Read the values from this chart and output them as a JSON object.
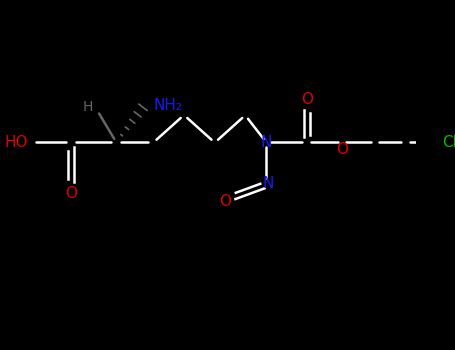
{
  "background_color": "#000000",
  "figsize": [
    4.55,
    3.5
  ],
  "dpi": 100,
  "bond_color": "#ffffff",
  "atom_colors": {
    "O": "#dd0000",
    "N": "#1a1aee",
    "Cl": "#00bb00",
    "H_stereo": "#666666",
    "C": "#ffffff"
  },
  "label_fontsize": 11,
  "bond_lw": 1.8,
  "xlim": [
    -0.5,
    9.5
  ],
  "ylim": [
    -1.2,
    4.0
  ]
}
